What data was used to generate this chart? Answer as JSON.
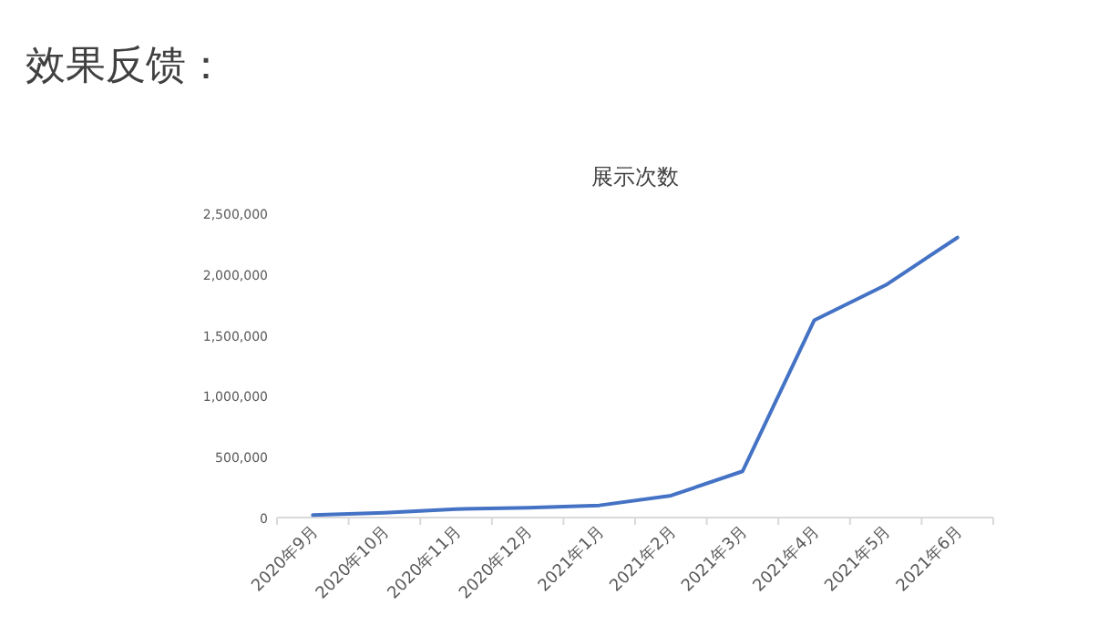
{
  "chart_data": {
    "type": "line",
    "title": "效果反馈：",
    "subtitle": "展示次数",
    "categories": [
      "2020年9月",
      "2020年10月",
      "2020年11月",
      "2020年12月",
      "2021年1月",
      "2021年2月",
      "2021年3月",
      "2021年4月",
      "2021年5月",
      "2021年6月"
    ],
    "series": [
      {
        "color": "#4472c4",
        "values": [
          20000,
          40000,
          70000,
          80000,
          100000,
          180000,
          380000,
          1620000,
          1910000,
          2300000
        ]
      }
    ],
    "ylim": [
      0,
      2500000
    ],
    "yticks": [
      {
        "value": 0,
        "label": "0"
      },
      {
        "value": 500000,
        "label": "500,000"
      },
      {
        "value": 1000000,
        "label": "1,000,000"
      },
      {
        "value": 1500000,
        "label": "1,500,000"
      },
      {
        "value": 2000000,
        "label": "2,000,000"
      },
      {
        "value": 2500000,
        "label": "2,500,000"
      }
    ],
    "marker": "none",
    "line_style": "solid"
  }
}
